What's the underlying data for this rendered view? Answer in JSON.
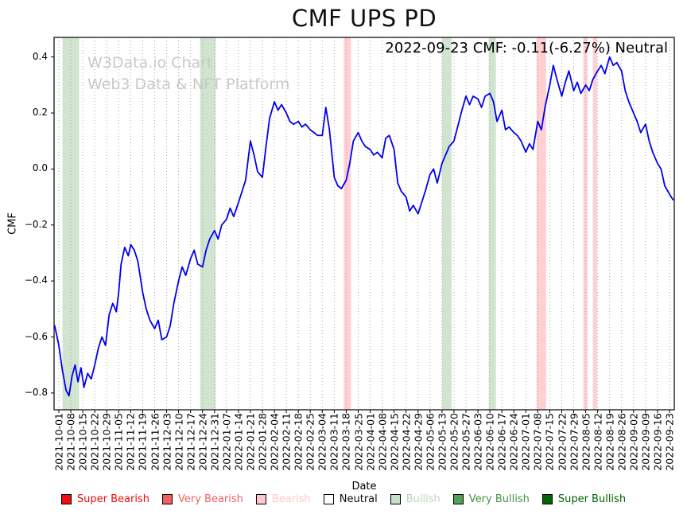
{
  "chart_data": {
    "type": "line",
    "title": "CMF UPS PD",
    "annotation": "2022-09-23 CMF: -0.11(-6.27%) Neutral",
    "watermark_line1": "W3Data.io Chart",
    "watermark_line2": "Web3 Data & NFT Platform",
    "xlabel": "Date",
    "ylabel": "CMF",
    "line_color": "#0000ee",
    "grid_color": "#a6a6a6",
    "xlim": [
      -0.4,
      51.4
    ],
    "ylim": [
      -0.86,
      0.47
    ],
    "y_ticks": [
      {
        "value": 0.4,
        "label": "0.4"
      },
      {
        "value": 0.2,
        "label": "0.2"
      },
      {
        "value": 0.0,
        "label": "0.0"
      },
      {
        "value": -0.2,
        "label": "−0.2"
      },
      {
        "value": -0.4,
        "label": "−0.4"
      },
      {
        "value": -0.6,
        "label": "−0.6"
      },
      {
        "value": -0.8,
        "label": "−0.8"
      }
    ],
    "x_tick_labels": [
      "2021-10-01",
      "2021-10-08",
      "2021-10-15",
      "2021-10-22",
      "2021-10-29",
      "2021-11-05",
      "2021-11-12",
      "2021-11-19",
      "2021-11-26",
      "2021-12-03",
      "2021-12-10",
      "2021-12-17",
      "2021-12-24",
      "2021-12-31",
      "2022-01-07",
      "2022-01-14",
      "2022-01-21",
      "2022-01-28",
      "2022-02-04",
      "2022-02-11",
      "2022-02-18",
      "2022-02-25",
      "2022-03-04",
      "2022-03-11",
      "2022-03-18",
      "2022-03-25",
      "2022-04-01",
      "2022-04-08",
      "2022-04-15",
      "2022-04-22",
      "2022-04-29",
      "2022-05-06",
      "2022-05-13",
      "2022-05-20",
      "2022-05-27",
      "2022-06-03",
      "2022-06-10",
      "2022-06-17",
      "2022-06-24",
      "2022-07-01",
      "2022-07-08",
      "2022-07-15",
      "2022-07-22",
      "2022-07-29",
      "2022-08-05",
      "2022-08-12",
      "2022-08-19",
      "2022-08-26",
      "2022-09-02",
      "2022-09-09",
      "2022-09-16",
      "2022-09-23"
    ],
    "bands": [
      {
        "start": 0.3,
        "end": 1.7,
        "kind": "bullish"
      },
      {
        "start": 11.8,
        "end": 13.1,
        "kind": "bullish"
      },
      {
        "start": 23.8,
        "end": 24.4,
        "kind": "bearish"
      },
      {
        "start": 32.0,
        "end": 32.8,
        "kind": "bullish"
      },
      {
        "start": 35.9,
        "end": 36.5,
        "kind": "bullish"
      },
      {
        "start": 39.9,
        "end": 40.7,
        "kind": "bearish"
      },
      {
        "start": 43.8,
        "end": 44.15,
        "kind": "bearish"
      },
      {
        "start": 44.6,
        "end": 44.95,
        "kind": "bearish"
      }
    ],
    "band_colors": {
      "bullish": "rgba(150,195,150,0.45)",
      "bearish": "rgba(255,135,145,0.40)"
    },
    "series": [
      {
        "name": "CMF",
        "points": [
          [
            -0.35,
            -0.56
          ],
          [
            0.0,
            -0.63
          ],
          [
            0.3,
            -0.72
          ],
          [
            0.6,
            -0.79
          ],
          [
            0.85,
            -0.81
          ],
          [
            1.1,
            -0.74
          ],
          [
            1.35,
            -0.7
          ],
          [
            1.6,
            -0.76
          ],
          [
            1.85,
            -0.71
          ],
          [
            2.1,
            -0.78
          ],
          [
            2.4,
            -0.73
          ],
          [
            2.7,
            -0.75
          ],
          [
            3.0,
            -0.7
          ],
          [
            3.3,
            -0.64
          ],
          [
            3.6,
            -0.6
          ],
          [
            3.9,
            -0.63
          ],
          [
            4.2,
            -0.52
          ],
          [
            4.5,
            -0.48
          ],
          [
            4.8,
            -0.51
          ],
          [
            5.0,
            -0.44
          ],
          [
            5.2,
            -0.34
          ],
          [
            5.5,
            -0.28
          ],
          [
            5.8,
            -0.31
          ],
          [
            6.0,
            -0.27
          ],
          [
            6.3,
            -0.29
          ],
          [
            6.6,
            -0.33
          ],
          [
            7.0,
            -0.44
          ],
          [
            7.3,
            -0.5
          ],
          [
            7.6,
            -0.54
          ],
          [
            8.0,
            -0.57
          ],
          [
            8.3,
            -0.54
          ],
          [
            8.6,
            -0.61
          ],
          [
            9.0,
            -0.6
          ],
          [
            9.3,
            -0.56
          ],
          [
            9.6,
            -0.48
          ],
          [
            10.0,
            -0.4
          ],
          [
            10.3,
            -0.35
          ],
          [
            10.6,
            -0.38
          ],
          [
            11.0,
            -0.32
          ],
          [
            11.3,
            -0.29
          ],
          [
            11.6,
            -0.34
          ],
          [
            12.0,
            -0.35
          ],
          [
            12.3,
            -0.29
          ],
          [
            12.6,
            -0.25
          ],
          [
            13.0,
            -0.22
          ],
          [
            13.3,
            -0.25
          ],
          [
            13.6,
            -0.2
          ],
          [
            14.0,
            -0.18
          ],
          [
            14.3,
            -0.14
          ],
          [
            14.6,
            -0.17
          ],
          [
            15.0,
            -0.12
          ],
          [
            15.3,
            -0.08
          ],
          [
            15.6,
            -0.04
          ],
          [
            16.0,
            0.1
          ],
          [
            16.3,
            0.05
          ],
          [
            16.6,
            -0.01
          ],
          [
            17.0,
            -0.03
          ],
          [
            17.3,
            0.08
          ],
          [
            17.6,
            0.18
          ],
          [
            18.0,
            0.24
          ],
          [
            18.3,
            0.21
          ],
          [
            18.6,
            0.23
          ],
          [
            19.0,
            0.2
          ],
          [
            19.3,
            0.17
          ],
          [
            19.6,
            0.16
          ],
          [
            20.0,
            0.17
          ],
          [
            20.3,
            0.15
          ],
          [
            20.6,
            0.16
          ],
          [
            21.0,
            0.14
          ],
          [
            21.3,
            0.13
          ],
          [
            21.6,
            0.12
          ],
          [
            22.0,
            0.12
          ],
          [
            22.3,
            0.22
          ],
          [
            22.6,
            0.14
          ],
          [
            23.0,
            -0.03
          ],
          [
            23.3,
            -0.06
          ],
          [
            23.6,
            -0.07
          ],
          [
            24.0,
            -0.04
          ],
          [
            24.3,
            0.02
          ],
          [
            24.6,
            0.1
          ],
          [
            25.0,
            0.13
          ],
          [
            25.3,
            0.1
          ],
          [
            25.6,
            0.08
          ],
          [
            26.0,
            0.07
          ],
          [
            26.3,
            0.05
          ],
          [
            26.6,
            0.06
          ],
          [
            27.0,
            0.04
          ],
          [
            27.3,
            0.11
          ],
          [
            27.6,
            0.12
          ],
          [
            28.0,
            0.07
          ],
          [
            28.3,
            -0.05
          ],
          [
            28.6,
            -0.08
          ],
          [
            29.0,
            -0.1
          ],
          [
            29.3,
            -0.15
          ],
          [
            29.6,
            -0.13
          ],
          [
            30.0,
            -0.16
          ],
          [
            30.3,
            -0.12
          ],
          [
            30.6,
            -0.08
          ],
          [
            31.0,
            -0.02
          ],
          [
            31.3,
            0.0
          ],
          [
            31.6,
            -0.05
          ],
          [
            32.0,
            0.02
          ],
          [
            32.3,
            0.05
          ],
          [
            32.6,
            0.08
          ],
          [
            33.0,
            0.1
          ],
          [
            33.3,
            0.15
          ],
          [
            33.6,
            0.2
          ],
          [
            34.0,
            0.26
          ],
          [
            34.3,
            0.23
          ],
          [
            34.6,
            0.26
          ],
          [
            35.0,
            0.25
          ],
          [
            35.3,
            0.22
          ],
          [
            35.6,
            0.26
          ],
          [
            36.0,
            0.27
          ],
          [
            36.3,
            0.24
          ],
          [
            36.6,
            0.17
          ],
          [
            37.0,
            0.21
          ],
          [
            37.3,
            0.14
          ],
          [
            37.6,
            0.15
          ],
          [
            38.0,
            0.13
          ],
          [
            38.3,
            0.12
          ],
          [
            38.6,
            0.1
          ],
          [
            39.0,
            0.06
          ],
          [
            39.3,
            0.09
          ],
          [
            39.6,
            0.07
          ],
          [
            40.0,
            0.17
          ],
          [
            40.3,
            0.14
          ],
          [
            40.6,
            0.22
          ],
          [
            41.0,
            0.3
          ],
          [
            41.3,
            0.37
          ],
          [
            41.6,
            0.32
          ],
          [
            42.0,
            0.26
          ],
          [
            42.3,
            0.31
          ],
          [
            42.6,
            0.35
          ],
          [
            43.0,
            0.28
          ],
          [
            43.3,
            0.31
          ],
          [
            43.6,
            0.27
          ],
          [
            44.0,
            0.3
          ],
          [
            44.3,
            0.28
          ],
          [
            44.6,
            0.32
          ],
          [
            45.0,
            0.35
          ],
          [
            45.3,
            0.37
          ],
          [
            45.6,
            0.34
          ],
          [
            46.0,
            0.4
          ],
          [
            46.3,
            0.37
          ],
          [
            46.6,
            0.38
          ],
          [
            47.0,
            0.35
          ],
          [
            47.3,
            0.28
          ],
          [
            47.6,
            0.24
          ],
          [
            48.0,
            0.2
          ],
          [
            48.3,
            0.17
          ],
          [
            48.6,
            0.13
          ],
          [
            49.0,
            0.16
          ],
          [
            49.3,
            0.1
          ],
          [
            49.6,
            0.06
          ],
          [
            50.0,
            0.02
          ],
          [
            50.3,
            0.0
          ],
          [
            50.6,
            -0.06
          ],
          [
            51.0,
            -0.09
          ],
          [
            51.3,
            -0.11
          ]
        ]
      }
    ]
  },
  "legend": {
    "items": [
      {
        "label": "Super Bearish",
        "swatch": "#ee1010",
        "text_color": "#e81010"
      },
      {
        "label": "Very Bearish",
        "swatch": "#f26060",
        "text_color": "#f26060"
      },
      {
        "label": "Bearish",
        "swatch": "#ffc6ce",
        "text_color": "#ffc6ce"
      },
      {
        "label": "Neutral",
        "swatch": "#ffffff",
        "text_color": "#111111"
      },
      {
        "label": "Bullish",
        "swatch": "#c6ddc6",
        "text_color": "#bcd4bc"
      },
      {
        "label": "Very Bullish",
        "swatch": "#55a055",
        "text_color": "#449244"
      },
      {
        "label": "Super Bullish",
        "swatch": "#046404",
        "text_color": "#046404"
      }
    ]
  }
}
